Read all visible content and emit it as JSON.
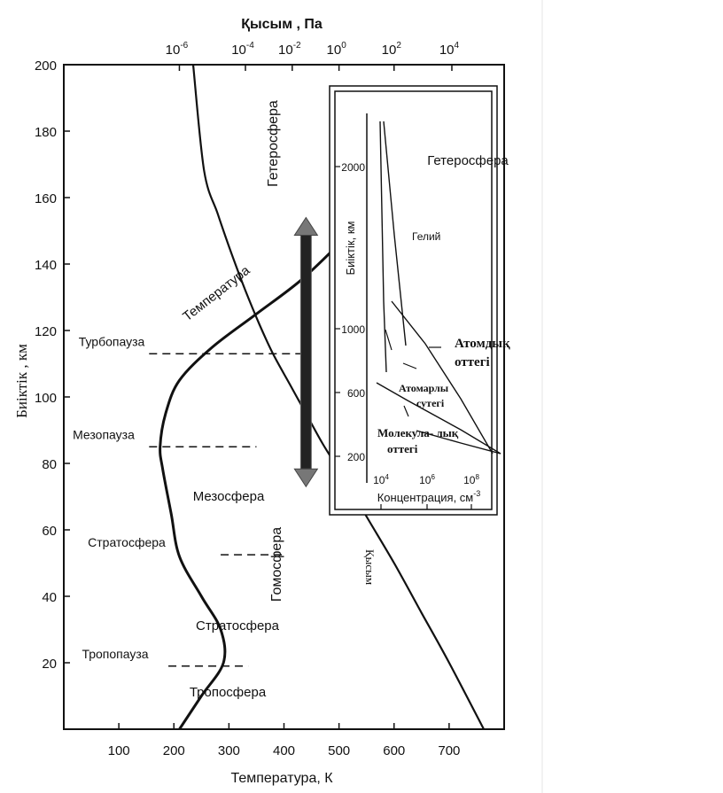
{
  "chart_data": {
    "type": "line",
    "title": "",
    "xlabel": "Температура, К",
    "ylabel": "Биіктік   , км",
    "top_axis_label": "Қысым   , Па",
    "xlim": [
      0,
      800
    ],
    "ylim": [
      0,
      200
    ],
    "x_ticks": [
      100,
      200,
      300,
      400,
      500,
      600,
      700
    ],
    "y_ticks": [
      20,
      40,
      60,
      80,
      100,
      120,
      140,
      160,
      180,
      200
    ],
    "top_ticks": [
      {
        "base": "10",
        "exp": "-6",
        "at_temperature": 210
      },
      {
        "base": "10",
        "exp": "-4",
        "at_temperature": 330
      },
      {
        "base": "10",
        "exp": "-2",
        "at_temperature": 415
      },
      {
        "base": "10",
        "exp": "0",
        "at_temperature": 500
      },
      {
        "base": "10",
        "exp": "2",
        "at_temperature": 600
      },
      {
        "base": "10",
        "exp": "4",
        "at_temperature": 705
      }
    ],
    "series": [
      {
        "name": "Температура",
        "x": [
          210,
          250,
          290,
          285,
          250,
          210,
          195,
          180,
          175,
          185,
          210,
          270,
          350,
          430,
          500
        ],
        "y": [
          0,
          10,
          20,
          30,
          40,
          52,
          65,
          78,
          85,
          95,
          105,
          115,
          125,
          135,
          146
        ]
      },
      {
        "name": "Қысым",
        "x": [
          763,
          700,
          650,
          600,
          550,
          500,
          470,
          440,
          410,
          380,
          355,
          330,
          305,
          280,
          255,
          235
        ],
        "y": [
          0,
          20,
          35,
          50,
          64,
          78,
          86,
          95,
          104,
          113,
          122,
          132,
          143,
          155,
          168,
          200
        ]
      }
    ],
    "layer_levels": [
      {
        "name": "Турбопауза",
        "altitude": 113,
        "x_from": 155,
        "x_to": 430
      },
      {
        "name": "Мезопауза",
        "altitude": 85,
        "x_from": 155,
        "x_to": 350
      },
      {
        "name": "Стратосфера",
        "altitude": 52.5,
        "x_from": 285,
        "x_to": 400
      },
      {
        "name": "Тропопауза",
        "altitude": 19,
        "x_from": 190,
        "x_to": 335
      }
    ],
    "region_labels": {
      "temperature_curve": "Температура",
      "pressure_curve": "Қысым",
      "mesosphere": "Мезосфера",
      "stratosphere": "Стратосфера",
      "troposphere": "Тропосфера",
      "heterosphere": "Гетеросфера",
      "homosphere": "Гомосфера"
    },
    "homosphere_heterosphere_arrow": {
      "temperature": 440,
      "from_altitude": 73,
      "to_altitude": 154
    },
    "inset": {
      "type": "line",
      "title": "Гетеросфера",
      "xlabel": "Концентрация, см",
      "xlabel_sup": "-3",
      "ylabel": "Биіктік, км",
      "x_ticks": [
        {
          "base": "10",
          "exp": "4"
        },
        {
          "base": "10",
          "exp": "6"
        },
        {
          "base": "10",
          "exp": "8"
        }
      ],
      "y_ticks": [
        200,
        600,
        1000,
        2000
      ],
      "labels": {
        "helium": "Гелий",
        "atomic_oxygen": "Атомдық оттегі",
        "atomic_hydrogen": "Атомарлы сутегі",
        "molecular_oxygen": "Молекула- лық оттегі"
      }
    }
  }
}
